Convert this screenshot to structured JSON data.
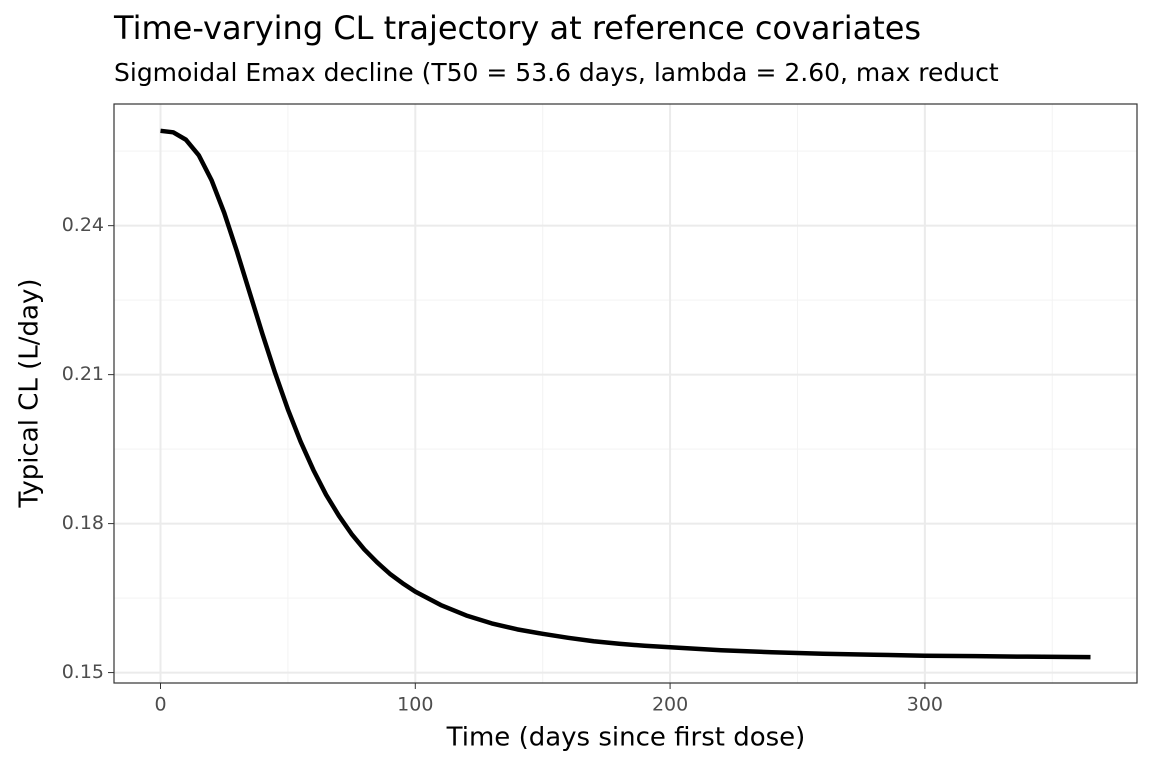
{
  "chart_data": {
    "type": "line",
    "title": "Time-varying CL trajectory at reference covariates",
    "subtitle": "Sigmoidal Emax decline (T50 = 53.6 days, lambda = 2.60, max reduct",
    "x_label": "Time (days since first dose)",
    "y_label": "Typical CL (L/day)",
    "x": [
      0,
      5,
      10,
      15,
      20,
      25,
      30,
      35,
      40,
      45,
      50,
      55,
      60,
      65,
      70,
      75,
      80,
      85,
      90,
      95,
      100,
      110,
      120,
      130,
      140,
      150,
      160,
      170,
      180,
      190,
      200,
      220,
      240,
      260,
      280,
      300,
      320,
      340,
      365
    ],
    "series": [
      {
        "name": "Typical CL",
        "color": "#000000",
        "values": [
          0.2591,
          0.2588,
          0.2573,
          0.2542,
          0.2492,
          0.2426,
          0.2348,
          0.2265,
          0.2182,
          0.2103,
          0.203,
          0.1965,
          0.1908,
          0.1858,
          0.1816,
          0.1779,
          0.1748,
          0.1722,
          0.1699,
          0.168,
          0.1663,
          0.1636,
          0.1615,
          0.1599,
          0.1587,
          0.1578,
          0.157,
          0.1563,
          0.1558,
          0.1554,
          0.1551,
          0.1545,
          0.1541,
          0.1538,
          0.1536,
          0.1534,
          0.1533,
          0.1532,
          0.1531
        ]
      }
    ],
    "xlim": [
      -18.25,
      383.25
    ],
    "xticks": [
      0,
      100,
      200,
      300
    ],
    "ylim": [
      0.1479,
      0.2645
    ],
    "yticks": [
      0.15,
      0.18,
      0.21,
      0.24
    ],
    "grid": true
  }
}
